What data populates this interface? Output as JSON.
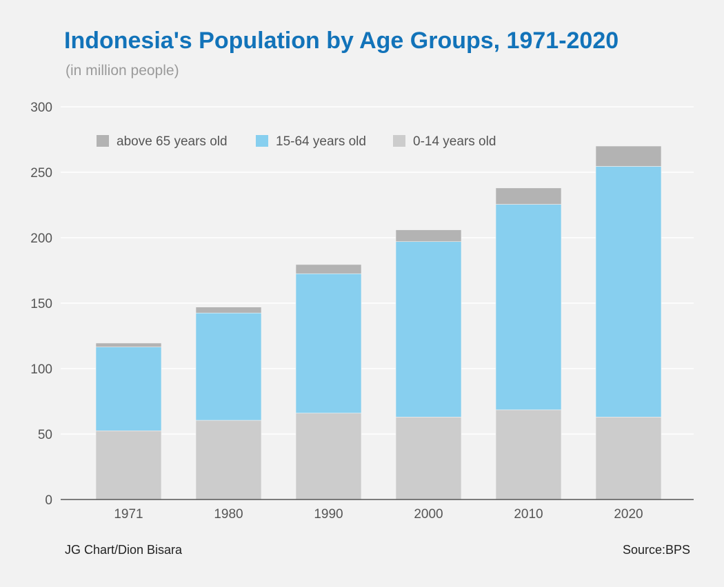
{
  "header": {
    "title": "Indonesia's Population by Age Groups, 1971-2020",
    "subtitle": "(in million people)"
  },
  "footer": {
    "credit": "JG Chart/Dion Bisara",
    "source": "Source:BPS"
  },
  "colors": {
    "title": "#1273b9",
    "above65": "#b3b3b3",
    "working": "#87cfef",
    "children": "#cccccc",
    "grid": "#ffffff",
    "axis_text": "#555555"
  },
  "chart_data": {
    "type": "bar",
    "stacked": true,
    "title": "Indonesia's Population by Age Groups, 1971-2020",
    "subtitle": "(in million people)",
    "categories": [
      "1971",
      "1980",
      "1990",
      "2000",
      "2010",
      "2020"
    ],
    "series": [
      {
        "name": "0-14 years old",
        "color": "#cccccc",
        "values": [
          52.5,
          60.5,
          66,
          63,
          68.5,
          63
        ]
      },
      {
        "name": "15-64 years old",
        "color": "#87cfef",
        "values": [
          64,
          82,
          106.5,
          134,
          157,
          191.5
        ]
      },
      {
        "name": "above 65 years old",
        "color": "#b3b3b3",
        "values": [
          3,
          4.5,
          7,
          9,
          12.5,
          15.5
        ]
      }
    ],
    "legend": {
      "position": "top-left",
      "order": [
        "above 65 years old",
        "15-64 years old",
        "0-14 years old"
      ]
    },
    "ylim": [
      0,
      300
    ],
    "yticks": [
      0,
      50,
      100,
      150,
      200,
      250,
      300
    ],
    "grid": true,
    "xlabel": "",
    "ylabel": ""
  }
}
